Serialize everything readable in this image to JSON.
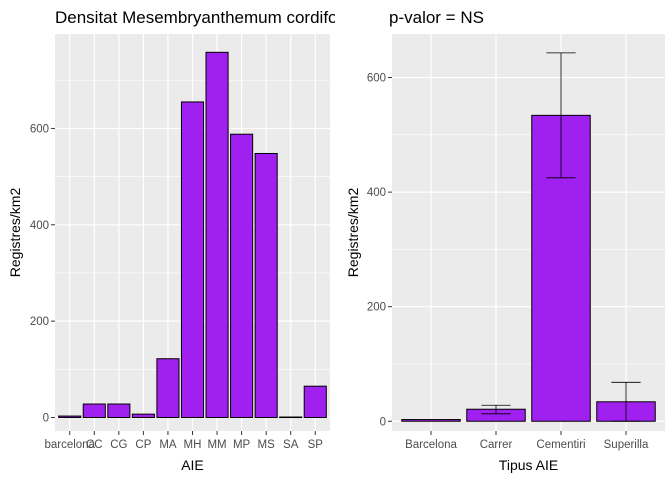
{
  "chart_data": [
    {
      "type": "bar",
      "title": "Densitat Mesembryanthemum cordifolium",
      "xlabel": "AIE",
      "ylabel": "Registres/km2",
      "categories": [
        "barcelona",
        "CC",
        "CG",
        "CP",
        "MA",
        "MH",
        "MM",
        "MP",
        "MS",
        "SA",
        "SP"
      ],
      "values": [
        3,
        28,
        28,
        7,
        122,
        655,
        758,
        588,
        548,
        1,
        65
      ],
      "ylim": [
        -28,
        796
      ],
      "yticks": [
        0,
        200,
        400,
        600
      ],
      "grid": true,
      "legend": "none",
      "bar_color": "#a020f0",
      "panel_color": "#ebebeb"
    },
    {
      "type": "bar",
      "title": "p-valor = NS",
      "xlabel": "Tipus AIE",
      "ylabel": "Registres/km2",
      "categories": [
        "Barcelona",
        "Carrer",
        "Cementiri",
        "Superilla"
      ],
      "values": [
        3,
        21,
        534,
        34
      ],
      "error_low": [
        3,
        13,
        425,
        0
      ],
      "error_high": [
        3,
        28,
        643,
        68
      ],
      "ylim": [
        -17,
        676
      ],
      "yticks": [
        0,
        200,
        400,
        600
      ],
      "grid": true,
      "legend": "none",
      "bar_color": "#a020f0",
      "panel_color": "#ebebeb"
    }
  ]
}
